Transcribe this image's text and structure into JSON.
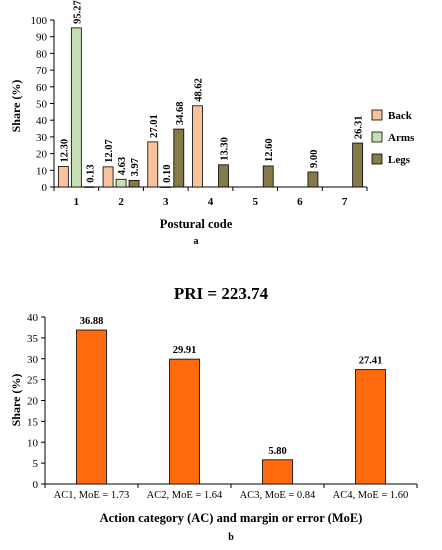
{
  "colors": {
    "back": "#F8C29C",
    "arms": "#C6E0B4",
    "legs": "#857A48",
    "action": "#FF6A0E",
    "axis": "#000000",
    "bar_stroke": "#000000"
  },
  "chart_data": [
    {
      "type": "bar",
      "panel_label": "a",
      "title": "",
      "xlabel": "Postural code",
      "ylabel": "Share (%)",
      "categories": [
        "1",
        "2",
        "3",
        "4",
        "5",
        "6",
        "7"
      ],
      "ylim": [
        0,
        100
      ],
      "yticks": [
        0,
        10,
        20,
        30,
        40,
        50,
        60,
        70,
        80,
        90,
        100
      ],
      "grid": false,
      "legend_position": "right",
      "series": [
        {
          "name": "Back",
          "color_key": "back",
          "values": [
            12.3,
            12.07,
            27.01,
            48.62,
            null,
            null,
            null
          ],
          "labels": [
            "12.30",
            "12.07",
            "27.01",
            "48.62",
            null,
            null,
            null
          ]
        },
        {
          "name": "Arms",
          "color_key": "arms",
          "values": [
            95.27,
            4.63,
            0.1,
            null,
            null,
            null,
            null
          ],
          "labels": [
            "95.27",
            "4.63",
            "0.10",
            null,
            null,
            null,
            null
          ]
        },
        {
          "name": "Legs",
          "color_key": "legs",
          "values": [
            0.13,
            3.97,
            34.68,
            13.3,
            12.6,
            9.0,
            26.31
          ],
          "labels": [
            "0.13",
            "3.97",
            "34.68",
            "13.30",
            "12.60",
            "9.00",
            "26.31"
          ]
        }
      ]
    },
    {
      "type": "bar",
      "panel_label": "b",
      "title": "PRI = 223.74",
      "xlabel": "Action category (AC) and margin or error (MoE)",
      "ylabel": "Share (%)",
      "categories": [
        "AC1, MoE = 1.73",
        "AC2, MoE = 1.64",
        "AC3, MoE = 0.84",
        "AC4, MoE = 1.60"
      ],
      "ylim": [
        0,
        40
      ],
      "yticks": [
        0,
        5,
        10,
        15,
        20,
        25,
        30,
        35,
        40
      ],
      "grid": false,
      "series": [
        {
          "color_key": "action",
          "values": [
            36.88,
            29.91,
            5.8,
            27.41
          ],
          "labels": [
            "36.88",
            "29.91",
            "5.80",
            "27.41"
          ]
        }
      ]
    }
  ]
}
